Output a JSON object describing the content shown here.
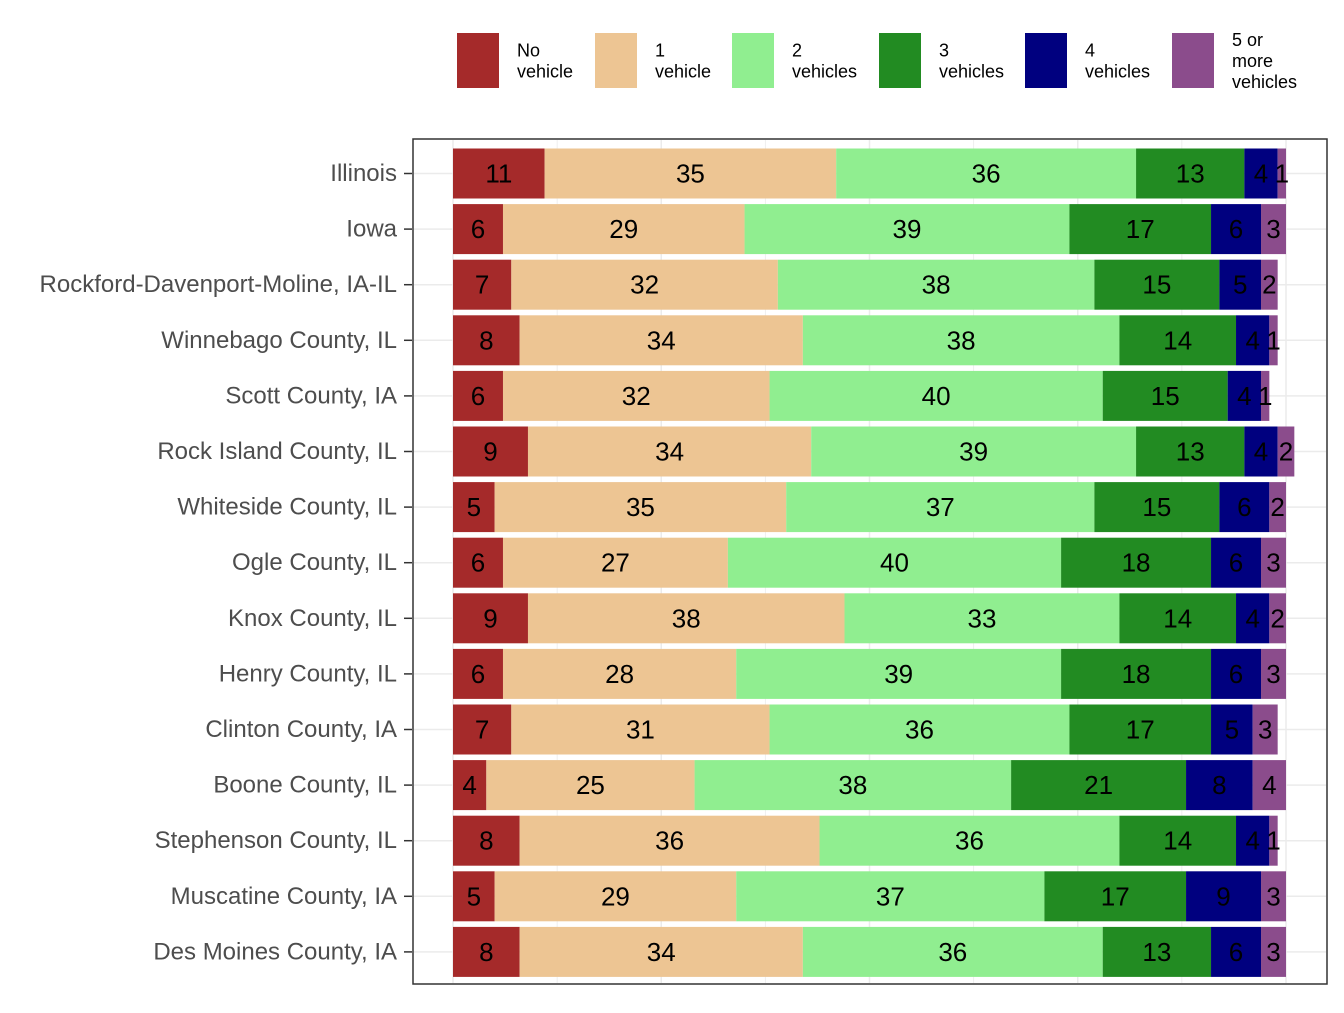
{
  "chart_data": {
    "type": "bar",
    "orientation": "horizontal",
    "stacked": true,
    "title": "",
    "xlabel": "",
    "ylabel": "",
    "xlim": [
      0,
      100
    ],
    "grid": true,
    "legend_position": "top",
    "categories": [
      "Illinois",
      "Iowa",
      "Rockford-Davenport-Moline, IA-IL",
      "Winnebago County, IL",
      "Scott County, IA",
      "Rock Island County, IL",
      "Whiteside County, IL",
      "Ogle County, IL",
      "Knox County, IL",
      "Henry County, IL",
      "Clinton County, IA",
      "Boone County, IL",
      "Stephenson County, IL",
      "Muscatine County, IA",
      "Des Moines County, IA"
    ],
    "series": [
      {
        "name": "No vehicle",
        "legend_lines": [
          "No",
          "vehicle"
        ],
        "color": "#A52A2A",
        "values": [
          11,
          6,
          7,
          8,
          6,
          9,
          5,
          6,
          9,
          6,
          7,
          4,
          8,
          5,
          8
        ]
      },
      {
        "name": "1 vehicle",
        "legend_lines": [
          "1",
          "vehicle"
        ],
        "color": "#EDC593",
        "values": [
          35,
          29,
          32,
          34,
          32,
          34,
          35,
          27,
          38,
          28,
          31,
          25,
          36,
          29,
          34
        ]
      },
      {
        "name": "2 vehicles",
        "legend_lines": [
          "2",
          "vehicles"
        ],
        "color": "#90EE90",
        "values": [
          36,
          39,
          38,
          38,
          40,
          39,
          37,
          40,
          33,
          39,
          36,
          38,
          36,
          37,
          36
        ]
      },
      {
        "name": "3 vehicles",
        "legend_lines": [
          "3",
          "vehicles"
        ],
        "color": "#228B22",
        "values": [
          13,
          17,
          15,
          14,
          15,
          13,
          15,
          18,
          14,
          18,
          17,
          21,
          14,
          17,
          13
        ]
      },
      {
        "name": "4 vehicles",
        "legend_lines": [
          "4",
          "vehicles"
        ],
        "color": "#00007F",
        "values": [
          4,
          6,
          5,
          4,
          4,
          4,
          6,
          6,
          4,
          6,
          5,
          8,
          4,
          9,
          6
        ]
      },
      {
        "name": "5 or more vehicles",
        "legend_lines": [
          "5 or",
          "more",
          "vehicles"
        ],
        "color": "#8B4C8C",
        "values": [
          1,
          3,
          2,
          1,
          1,
          2,
          2,
          3,
          2,
          3,
          3,
          4,
          1,
          3,
          3
        ]
      }
    ]
  }
}
